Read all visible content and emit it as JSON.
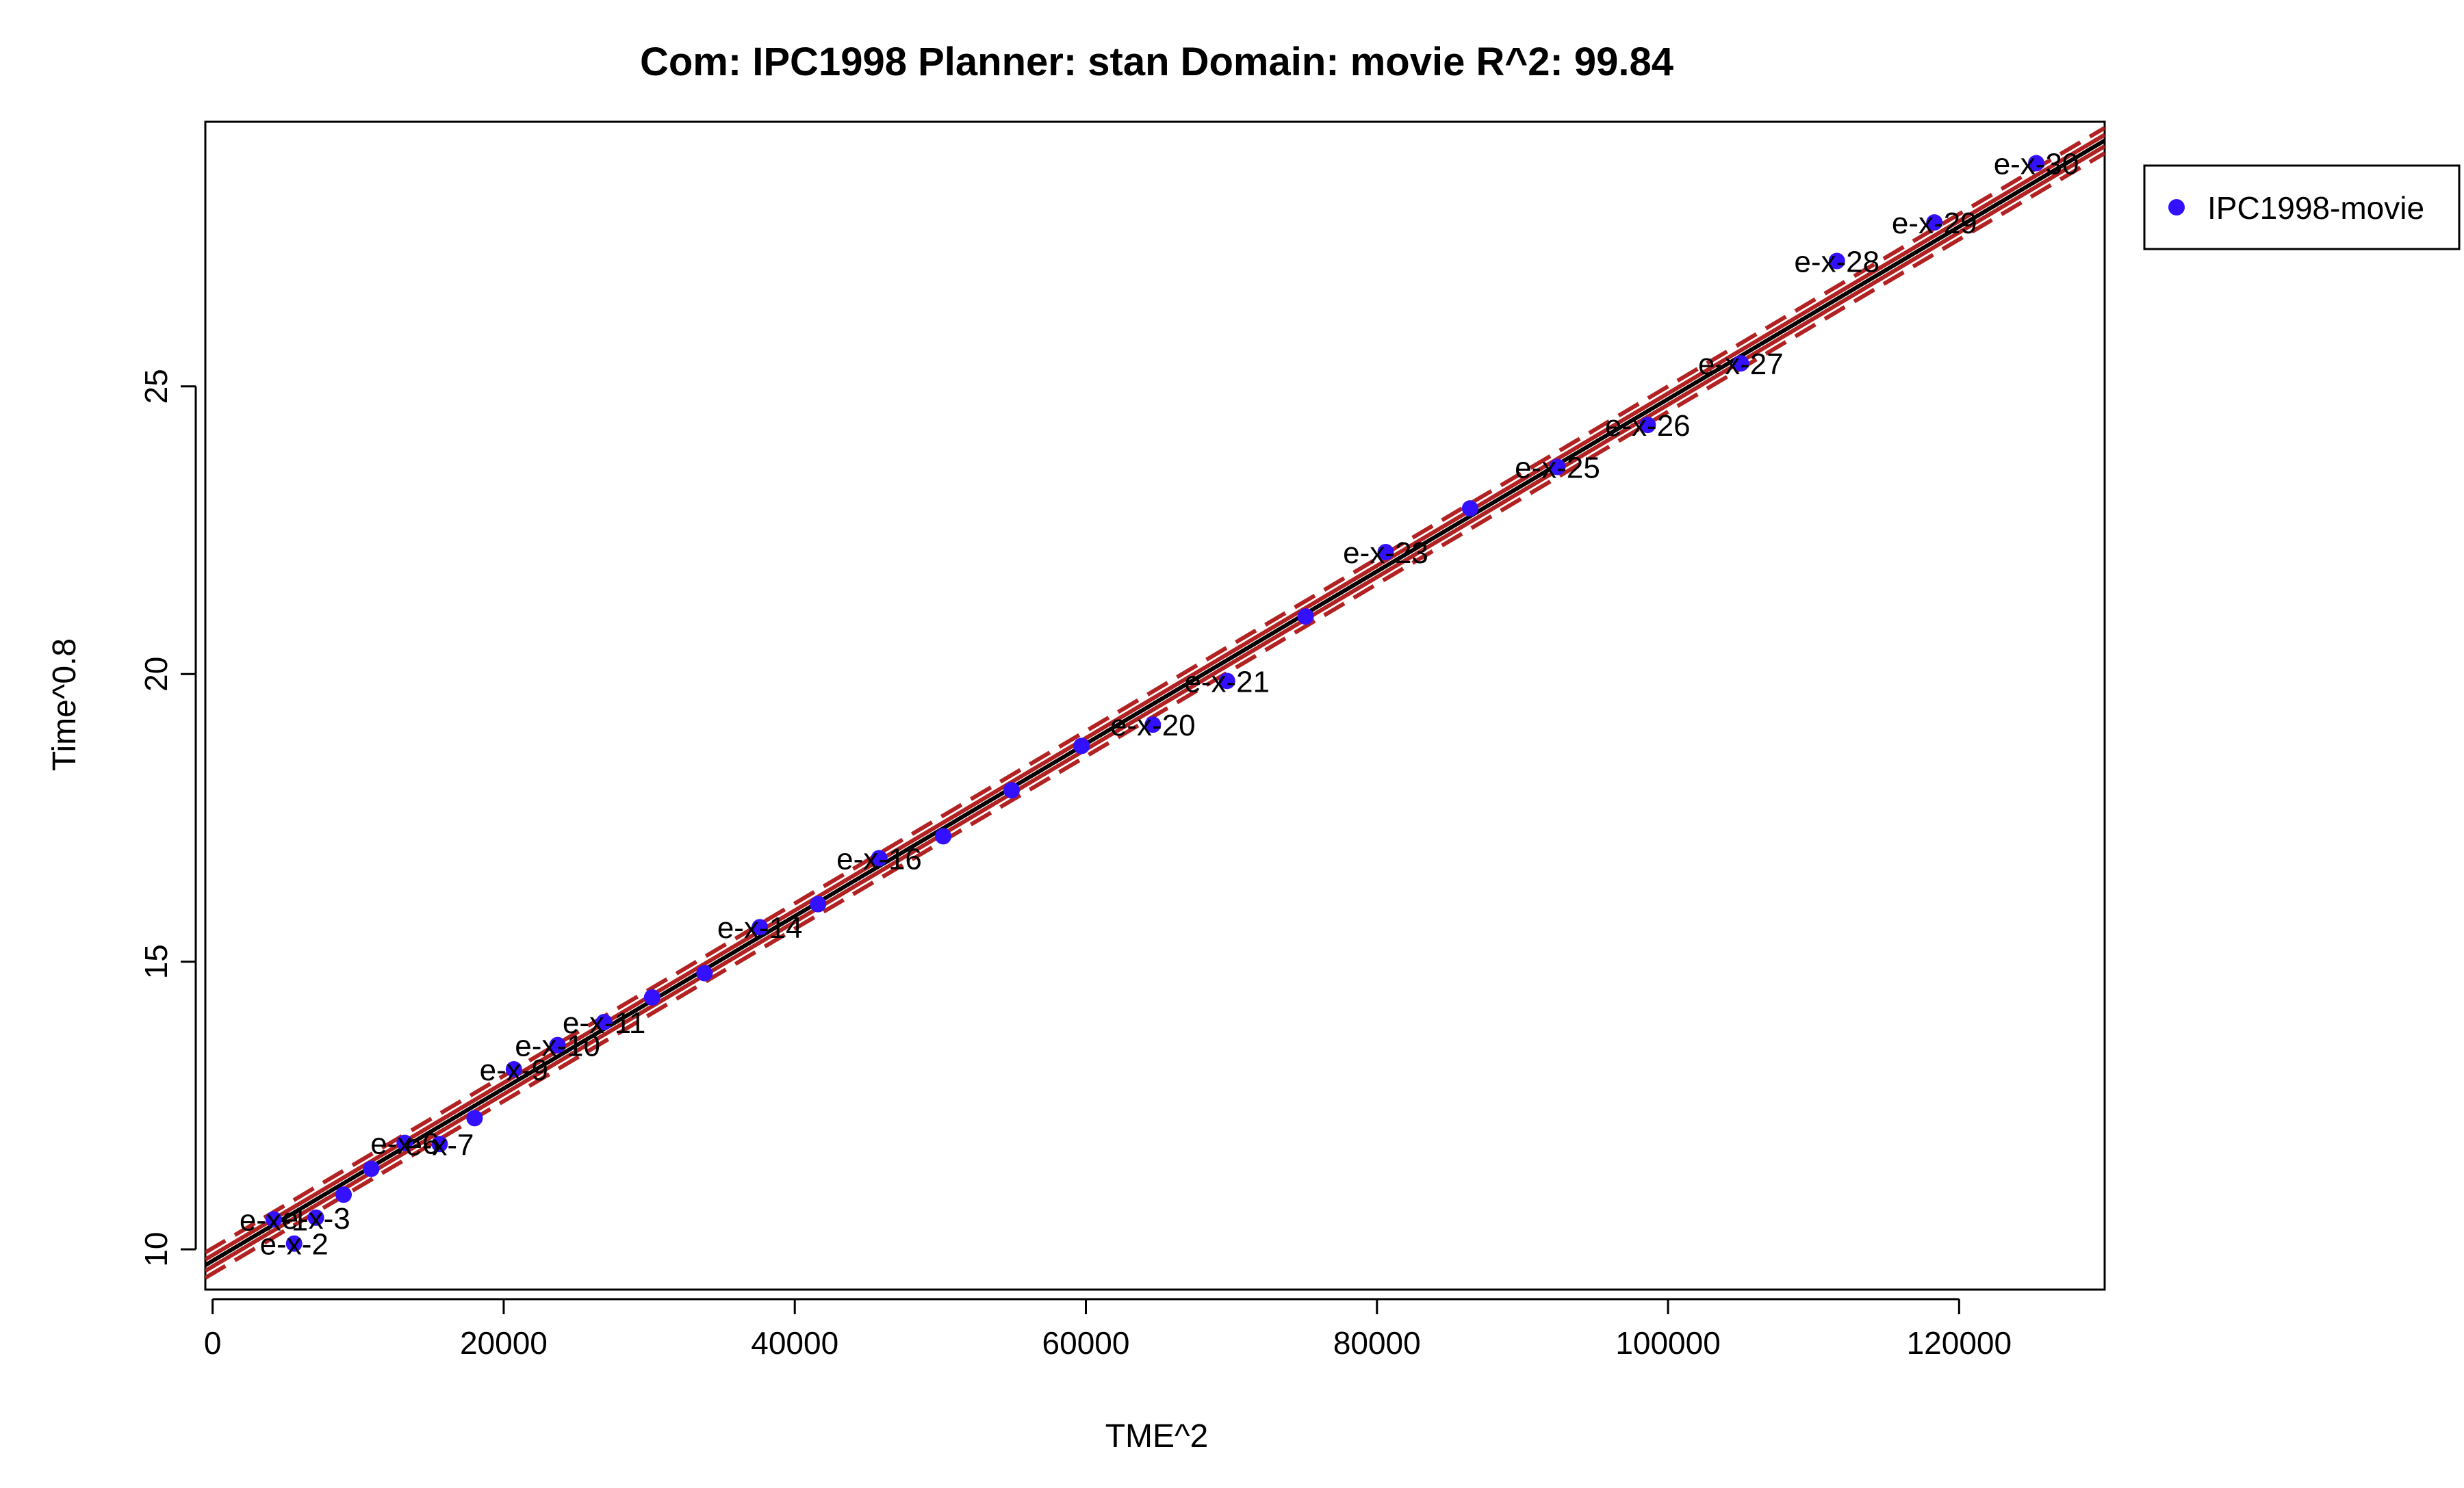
{
  "chart_data": {
    "type": "scatter",
    "title": "Com: IPC1998 Planner: stan Domain: movie R^2: 99.84",
    "xlabel": "TME^2",
    "ylabel": "Time^0.8",
    "xlim": [
      -500,
      130000
    ],
    "ylim": [
      9.3,
      29.6
    ],
    "xticks": [
      0,
      20000,
      40000,
      60000,
      80000,
      100000,
      120000
    ],
    "xtick_labels": [
      "0",
      "20000",
      "40000",
      "60000",
      "80000",
      "100000",
      "120000"
    ],
    "yticks": [
      10,
      15,
      20,
      25
    ],
    "ytick_labels": [
      "10",
      "15",
      "20",
      "25"
    ],
    "grid": false,
    "legend": {
      "position": "right-outside-top",
      "entries": [
        "IPC1998-movie"
      ]
    },
    "colors": {
      "points": "#3311ff",
      "fit": "#000000",
      "band": "#b22222"
    },
    "fit": {
      "slope": 0.0001498,
      "intercept": 9.8,
      "band_offset": 0.22
    },
    "series": [
      {
        "name": "IPC1998-movie",
        "points": [
          {
            "x": 4200,
            "y": 10.52,
            "label": "e-x-1"
          },
          {
            "x": 5600,
            "y": 10.1,
            "label": "e-x-2"
          },
          {
            "x": 7100,
            "y": 10.55,
            "label": "e-x-3"
          },
          {
            "x": 9000,
            "y": 10.95,
            "label": ""
          },
          {
            "x": 10900,
            "y": 11.4,
            "label": ""
          },
          {
            "x": 13200,
            "y": 11.85,
            "label": "e-x-6"
          },
          {
            "x": 15600,
            "y": 11.83,
            "label": "e-x-7"
          },
          {
            "x": 18000,
            "y": 12.28,
            "label": ""
          },
          {
            "x": 20700,
            "y": 13.13,
            "label": "e-x-9"
          },
          {
            "x": 23700,
            "y": 13.55,
            "label": "e-x-10"
          },
          {
            "x": 26900,
            "y": 13.95,
            "label": "e-x-11"
          },
          {
            "x": 30200,
            "y": 14.38,
            "label": ""
          },
          {
            "x": 33800,
            "y": 14.8,
            "label": ""
          },
          {
            "x": 37600,
            "y": 15.6,
            "label": "e-x-14"
          },
          {
            "x": 41600,
            "y": 16.0,
            "label": ""
          },
          {
            "x": 45800,
            "y": 16.8,
            "label": "e-x-16"
          },
          {
            "x": 50200,
            "y": 17.18,
            "label": ""
          },
          {
            "x": 54900,
            "y": 17.98,
            "label": ""
          },
          {
            "x": 59700,
            "y": 18.75,
            "label": ""
          },
          {
            "x": 64600,
            "y": 19.12,
            "label": "e-x-20"
          },
          {
            "x": 69700,
            "y": 19.88,
            "label": "e-x-21"
          },
          {
            "x": 75100,
            "y": 21.0,
            "label": ""
          },
          {
            "x": 80600,
            "y": 22.12,
            "label": "e-x-23"
          },
          {
            "x": 86400,
            "y": 22.88,
            "label": ""
          },
          {
            "x": 92400,
            "y": 23.6,
            "label": "e-x-25"
          },
          {
            "x": 98600,
            "y": 24.33,
            "label": "e-x-26"
          },
          {
            "x": 105000,
            "y": 25.4,
            "label": "e-x-27"
          },
          {
            "x": 111600,
            "y": 27.18,
            "label": "e-x-28"
          },
          {
            "x": 118300,
            "y": 27.85,
            "label": "e-x-29"
          },
          {
            "x": 125300,
            "y": 28.88,
            "label": "e-x-30"
          }
        ]
      }
    ]
  }
}
